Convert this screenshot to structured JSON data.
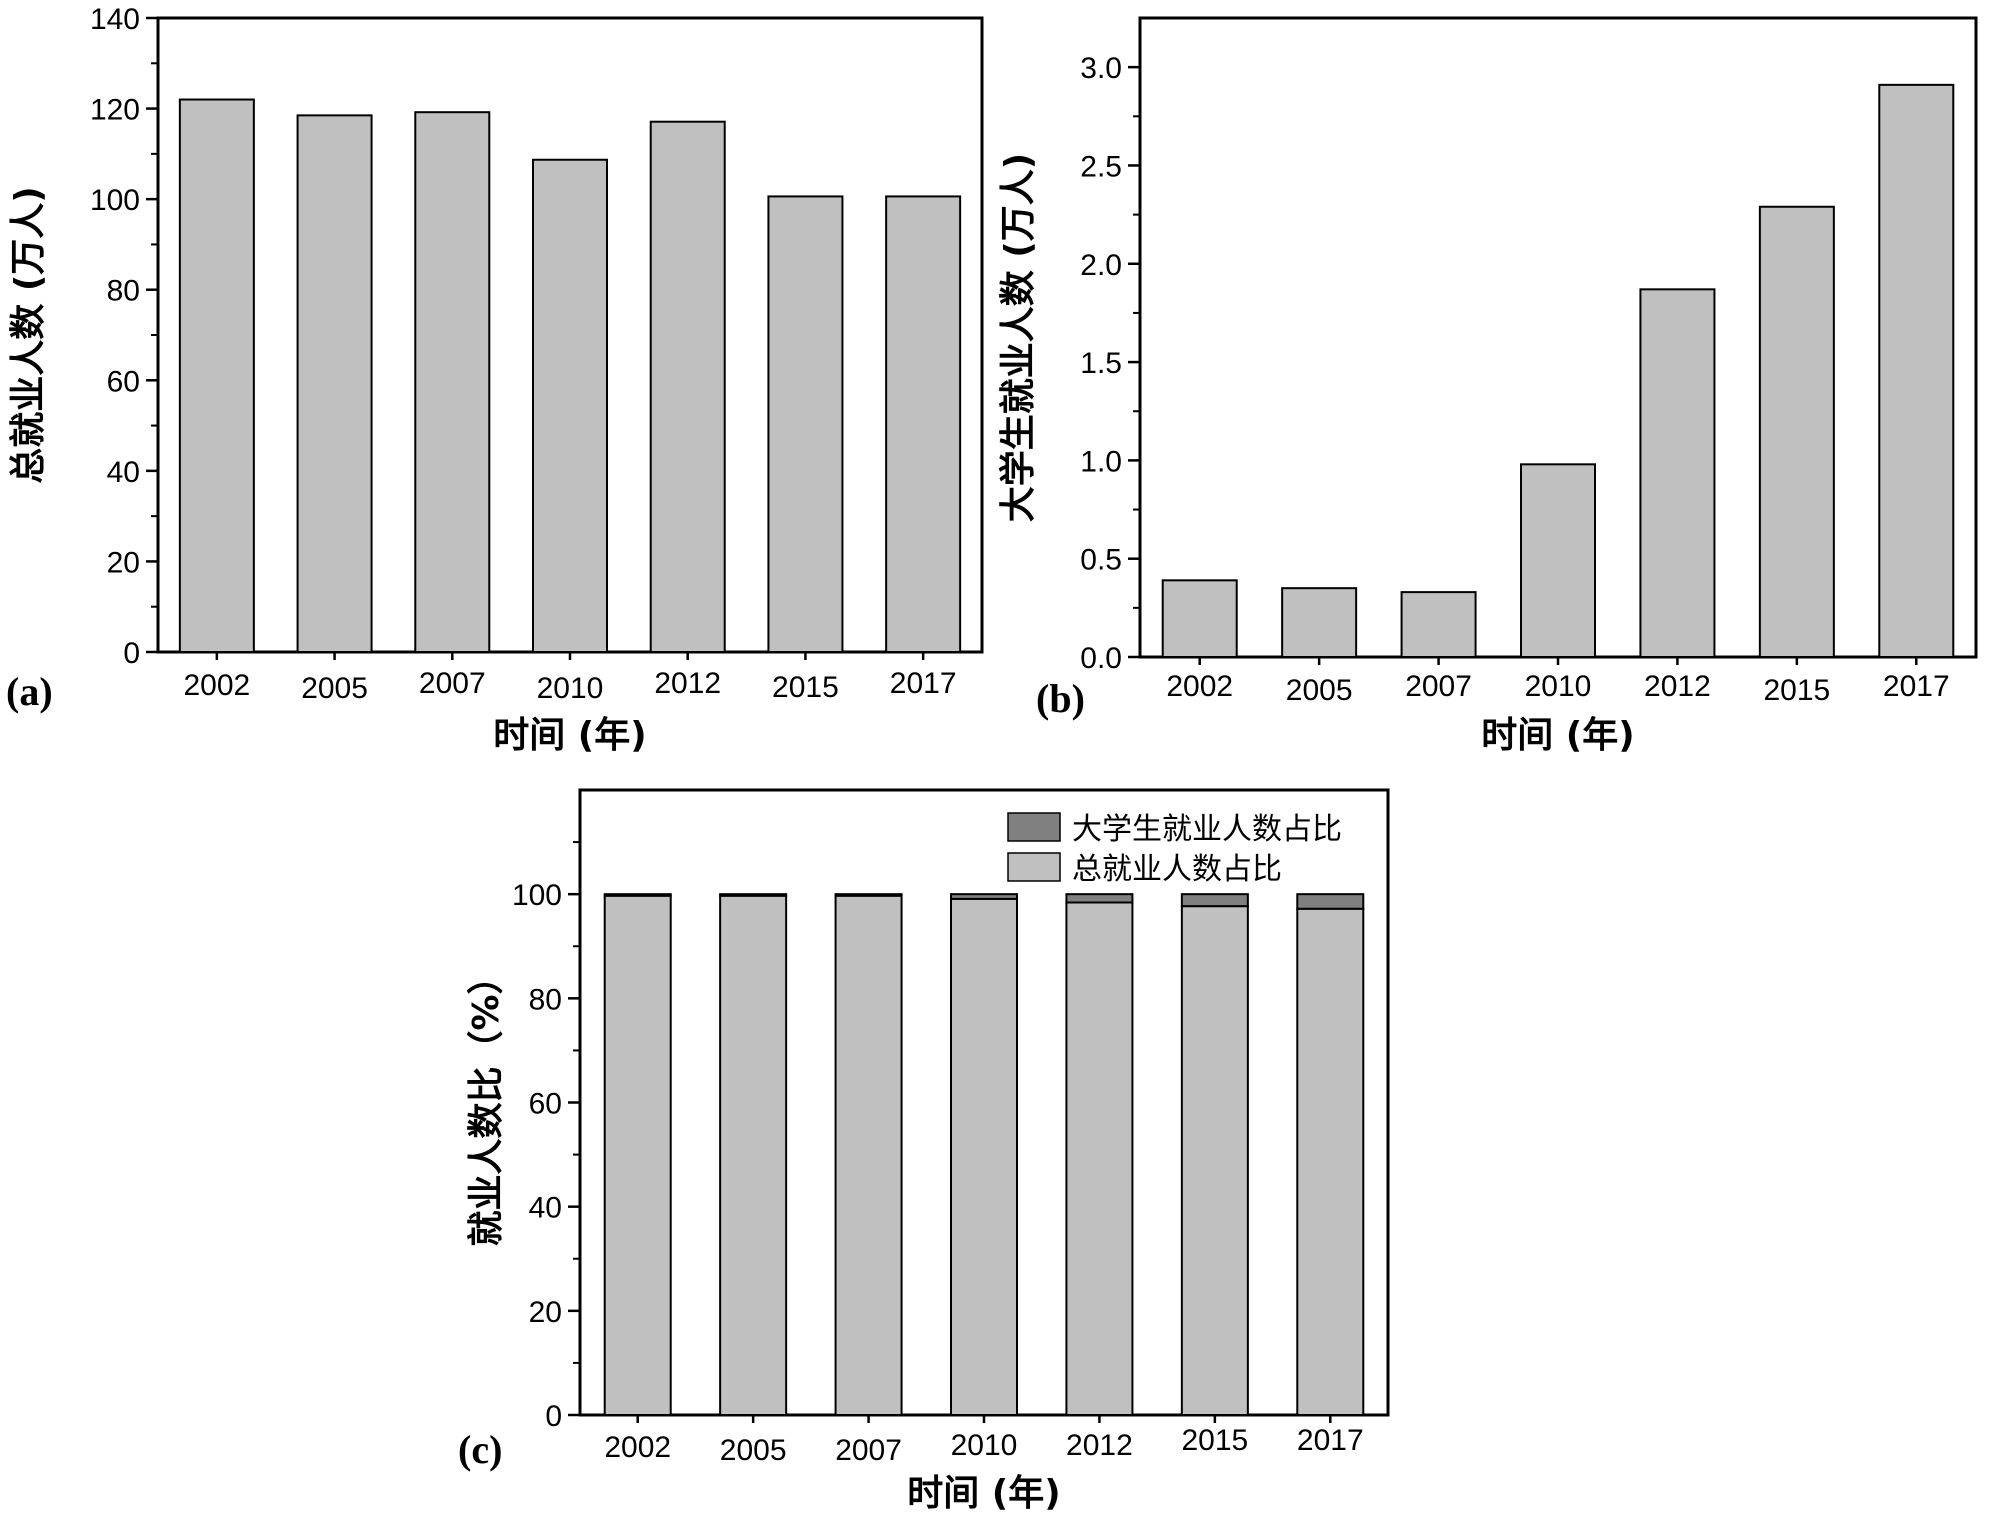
{
  "colors": {
    "bar": "#c0c0c0",
    "bar_dark": "#808080",
    "axis": "#000000"
  },
  "chart_data": [
    {
      "id": "a",
      "panel_label": "(a)",
      "type": "bar",
      "categories": [
        "2002",
        "2005",
        "2007",
        "2010",
        "2012",
        "2015",
        "2017"
      ],
      "values": [
        122,
        118.5,
        119.2,
        108.7,
        117.1,
        100.6,
        100.6
      ],
      "xlabel": "时间 (年)",
      "ylabel": "总就业人数 (万人)",
      "ylim": [
        0,
        140
      ],
      "yticks": [
        0,
        20,
        40,
        60,
        80,
        100,
        120,
        140
      ],
      "ytick_labels": [
        "0",
        "20",
        "40",
        "60",
        "80",
        "100",
        "120",
        "140"
      ]
    },
    {
      "id": "b",
      "panel_label": "(b)",
      "type": "bar",
      "categories": [
        "2002",
        "2005",
        "2007",
        "2010",
        "2012",
        "2015",
        "2017"
      ],
      "values": [
        0.39,
        0.35,
        0.33,
        0.98,
        1.87,
        2.29,
        2.91
      ],
      "xlabel": "时间 (年)",
      "ylabel": "大学生就业人数 (万人)",
      "ylim": [
        0,
        3.25
      ],
      "yticks": [
        0,
        0.5,
        1.0,
        1.5,
        2.0,
        2.5,
        3.0
      ],
      "ytick_labels": [
        "0.0",
        "0.5",
        "1.0",
        "1.5",
        "2.0",
        "2.5",
        "3.0"
      ]
    },
    {
      "id": "c",
      "panel_label": "(c)",
      "type": "bar",
      "stacked": true,
      "categories": [
        "2002",
        "2005",
        "2007",
        "2010",
        "2012",
        "2015",
        "2017"
      ],
      "series": [
        {
          "name": "总就业人数占比",
          "values": [
            99.7,
            99.7,
            99.7,
            99.1,
            98.4,
            97.7,
            97.2
          ]
        },
        {
          "name": "大学生就业人数占比",
          "values": [
            0.3,
            0.3,
            0.3,
            0.9,
            1.6,
            2.3,
            2.8
          ]
        }
      ],
      "legend_order": [
        "大学生就业人数占比",
        "总就业人数占比"
      ],
      "legend_position": "top-right",
      "xlabel": "时间 (年)",
      "ylabel": "就业人数比（%）",
      "ylim": [
        0,
        120
      ],
      "yticks": [
        0,
        20,
        40,
        60,
        80,
        100
      ],
      "ytick_labels": [
        "0",
        "20",
        "40",
        "60",
        "80",
        "100"
      ]
    }
  ]
}
